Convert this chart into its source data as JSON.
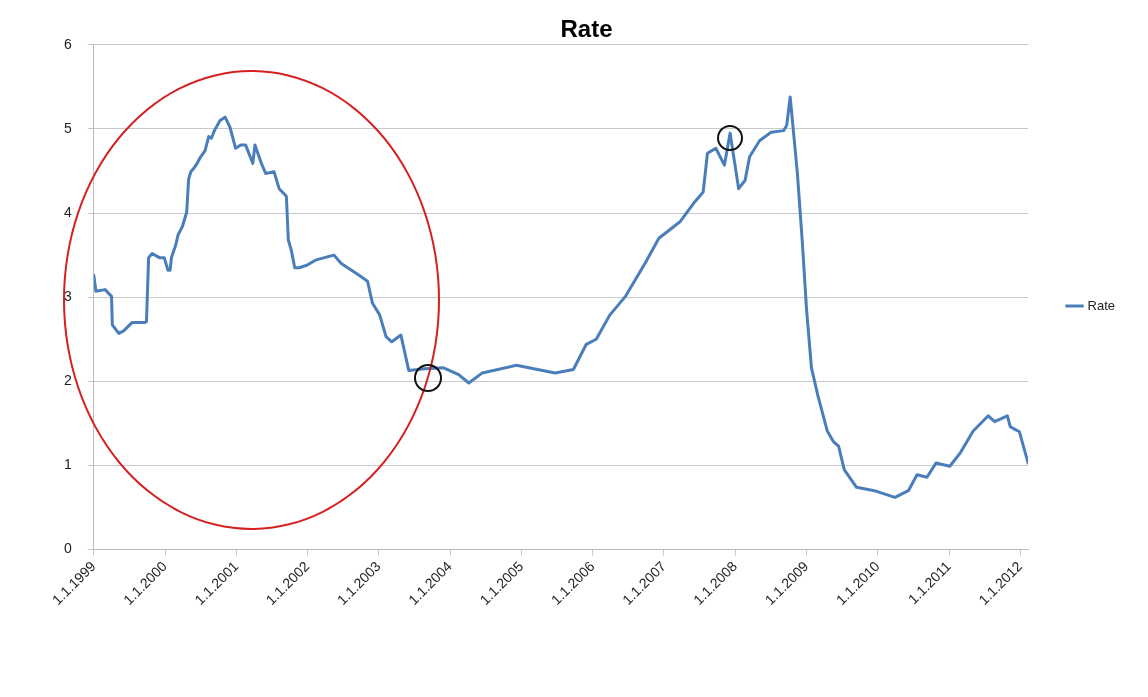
{
  "chart_data": {
    "type": "line",
    "title": "Rate",
    "x": [
      "1999-01-01",
      "1999-01-12",
      "1999-02-28",
      "1999-04-02",
      "1999-04-06",
      "1999-05-09",
      "1999-06-03",
      "1999-07-17",
      "1999-09-21",
      "1999-09-28",
      "1999-10-09",
      "1999-10-27",
      "1999-12-03",
      "1999-12-28",
      "2000-01-16",
      "2000-01-27",
      "2000-02-03",
      "2000-02-25",
      "2000-03-08",
      "2000-03-30",
      "2000-04-21",
      "2000-05-01",
      "2000-05-12",
      "2000-05-27",
      "2000-06-14",
      "2000-06-29",
      "2000-07-24",
      "2000-08-12",
      "2000-08-26",
      "2000-09-10",
      "2000-10-09",
      "2000-11-04",
      "2000-11-29",
      "2000-12-28",
      "2001-01-23",
      "2001-02-17",
      "2001-03-26",
      "2001-04-06",
      "2001-05-09",
      "2001-05-31",
      "2001-07-13",
      "2001-08-08",
      "2001-09-14",
      "2001-09-24",
      "2001-10-09",
      "2001-10-27",
      "2001-11-18",
      "2001-12-28",
      "2002-02-10",
      "2002-05-16",
      "2002-06-22",
      "2002-09-10",
      "2002-11-04",
      "2002-11-29",
      "2003-01-05",
      "2003-02-07",
      "2003-03-08",
      "2003-04-24",
      "2003-06-03",
      "2003-08-23",
      "2003-11-29",
      "2004-02-14",
      "2004-04-06",
      "2004-06-14",
      "2004-12-06",
      "2005-06-22",
      "2005-09-24",
      "2005-11-29",
      "2006-01-19",
      "2006-03-30",
      "2006-06-18",
      "2006-09-28",
      "2006-12-06",
      "2007-03-26",
      "2007-05-31",
      "2007-07-21",
      "2007-08-12",
      "2007-09-24",
      "2007-11-07",
      "2007-12-06",
      "2008-01-19",
      "2008-02-21",
      "2008-03-15",
      "2008-05-05",
      "2008-07-03",
      "2008-09-06",
      "2008-09-21",
      "2008-10-09",
      "2008-10-20",
      "2008-11-15",
      "2008-12-10",
      "2009-01-01",
      "2009-01-26",
      "2009-02-28",
      "2009-04-17",
      "2009-05-20",
      "2009-06-14",
      "2009-07-13",
      "2009-09-14",
      "2009-12-14",
      "2010-03-30",
      "2010-06-07",
      "2010-07-21",
      "2010-09-10",
      "2010-10-27",
      "2011-01-05",
      "2011-02-28",
      "2011-05-05",
      "2011-07-21",
      "2011-08-23",
      "2011-10-27",
      "2011-11-11",
      "2011-12-28",
      "2012-02-10"
    ],
    "series": [
      {
        "name": "Rate",
        "color": "#4a7ebb",
        "values": [
          3.26,
          3.07,
          3.09,
          3.01,
          2.67,
          2.57,
          2.6,
          2.7,
          2.7,
          2.71,
          3.47,
          3.52,
          3.47,
          3.47,
          3.32,
          3.32,
          3.47,
          3.62,
          3.74,
          3.84,
          4.01,
          4.4,
          4.49,
          4.53,
          4.59,
          4.66,
          4.74,
          4.91,
          4.89,
          4.98,
          5.1,
          5.14,
          5.02,
          4.77,
          4.81,
          4.81,
          4.59,
          4.81,
          4.59,
          4.47,
          4.49,
          4.29,
          4.2,
          3.68,
          3.56,
          3.35,
          3.35,
          3.38,
          3.44,
          3.5,
          3.4,
          3.28,
          3.19,
          2.93,
          2.79,
          2.53,
          2.47,
          2.55,
          2.13,
          2.15,
          2.16,
          2.08,
          1.98,
          2.1,
          2.19,
          2.1,
          2.14,
          2.44,
          2.5,
          2.79,
          3.01,
          3.41,
          3.7,
          3.9,
          4.11,
          4.25,
          4.71,
          4.77,
          4.57,
          4.95,
          4.29,
          4.39,
          4.67,
          4.86,
          4.96,
          4.98,
          5.04,
          5.38,
          5.11,
          4.47,
          3.66,
          2.85,
          2.16,
          1.83,
          1.41,
          1.28,
          1.23,
          0.95,
          0.74,
          0.7,
          0.62,
          0.7,
          0.89,
          0.86,
          1.03,
          0.99,
          1.15,
          1.41,
          1.59,
          1.52,
          1.59,
          1.46,
          1.4,
          1.03
        ]
      }
    ],
    "xlim": [
      "1999-01-01",
      "2012-02-10"
    ],
    "xticks": [
      {
        "value": "1999-01-01",
        "label": "1.1.1999"
      },
      {
        "value": "2000-01-01",
        "label": "1.1.2000"
      },
      {
        "value": "2001-01-01",
        "label": "1.1.2001"
      },
      {
        "value": "2002-01-01",
        "label": "1.1.2002"
      },
      {
        "value": "2003-01-01",
        "label": "1.1.2003"
      },
      {
        "value": "2004-01-01",
        "label": "1.1.2004"
      },
      {
        "value": "2005-01-01",
        "label": "1.1.2005"
      },
      {
        "value": "2006-01-01",
        "label": "1.1.2006"
      },
      {
        "value": "2007-01-01",
        "label": "1.1.2007"
      },
      {
        "value": "2008-01-01",
        "label": "1.1.2008"
      },
      {
        "value": "2009-01-01",
        "label": "1.1.2009"
      },
      {
        "value": "2010-01-01",
        "label": "1.1.2010"
      },
      {
        "value": "2011-01-01",
        "label": "1.1.2011"
      },
      {
        "value": "2012-01-01",
        "label": "1.1.2012"
      }
    ],
    "ylim": [
      0,
      6
    ],
    "yticks": [
      0,
      1,
      2,
      3,
      4,
      5,
      6
    ],
    "grid": "y",
    "legend": "right",
    "marker": "none",
    "line_style": "solid"
  }
}
